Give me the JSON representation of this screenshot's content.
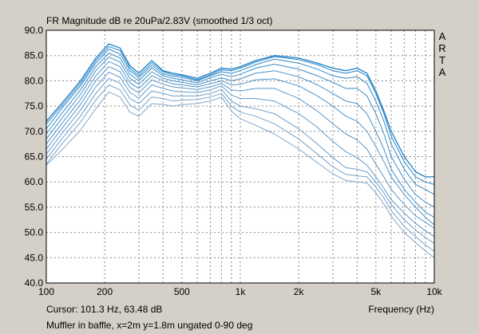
{
  "chart_data": {
    "type": "line",
    "title": "FR Magnitude dB re 20uPa/2.83V (smoothed 1/3 oct)",
    "xlabel": "Frequency (Hz)",
    "ylabel": "",
    "x_scale": "log",
    "xlim": [
      100,
      10000
    ],
    "ylim": [
      40,
      90
    ],
    "grid": true,
    "y_ticks": [
      "90.0",
      "85.0",
      "80.0",
      "75.0",
      "70.0",
      "65.0",
      "60.0",
      "55.0",
      "50.0",
      "45.0",
      "40.0"
    ],
    "x_ticks": [
      {
        "value": 100,
        "label": "100"
      },
      {
        "value": 200,
        "label": "200"
      },
      {
        "value": 500,
        "label": "500"
      },
      {
        "value": 1000,
        "label": "1k"
      },
      {
        "value": 2000,
        "label": "2k"
      },
      {
        "value": 5000,
        "label": "5k"
      },
      {
        "value": 10000,
        "label": "10k"
      }
    ],
    "x": [
      100,
      120,
      150,
      180,
      210,
      240,
      270,
      300,
      350,
      400,
      450,
      500,
      600,
      700,
      800,
      900,
      1000,
      1200,
      1500,
      2000,
      2500,
      3000,
      3500,
      4000,
      4500,
      5000,
      5500,
      6000,
      7000,
      8000,
      9000,
      10000
    ],
    "series": [
      {
        "values": [
          72,
          75.5,
          80,
          84.5,
          87.3,
          86.5,
          83,
          81.5,
          84,
          82,
          81.5,
          81.2,
          80.5,
          81.5,
          82.5,
          82.3,
          82.8,
          84,
          85,
          84.5,
          83.5,
          82.5,
          82,
          82.5,
          81.5,
          78,
          74,
          70,
          65,
          62,
          61,
          61
        ]
      },
      {
        "values": [
          71.5,
          75,
          79.5,
          84,
          86.8,
          86,
          82.5,
          81,
          83.5,
          81.8,
          81.2,
          81,
          80.2,
          81.2,
          82.2,
          82,
          82.5,
          83.7,
          84.8,
          84.2,
          83.2,
          82,
          81.5,
          82,
          81,
          77.5,
          73.5,
          69,
          64,
          61,
          60,
          59.5
        ]
      },
      {
        "values": [
          70.5,
          74.5,
          79,
          83.5,
          86.3,
          85.3,
          82,
          80.6,
          83,
          81.4,
          80.9,
          80.7,
          80,
          81,
          81.8,
          81.5,
          82,
          83.2,
          84.3,
          83.5,
          82.3,
          81,
          80.5,
          80.8,
          79.5,
          76,
          72,
          67.5,
          62.5,
          59.5,
          58.5,
          57.5
        ]
      },
      {
        "values": [
          69.5,
          73.5,
          78.2,
          82.8,
          85.5,
          84.5,
          81.3,
          80,
          82.5,
          81,
          80.5,
          80.2,
          79.6,
          80.6,
          81.3,
          80.8,
          81.3,
          82.5,
          83.3,
          82.3,
          81,
          79.7,
          78.5,
          78.5,
          77,
          73.5,
          69.5,
          65,
          60.5,
          57.5,
          56,
          55
        ]
      },
      {
        "values": [
          68.5,
          72.5,
          77.3,
          82,
          84.7,
          83.7,
          80.5,
          79.3,
          81.8,
          80.5,
          80,
          79.7,
          79.2,
          80,
          80.6,
          80,
          80.4,
          81.5,
          82,
          80.8,
          79.2,
          77.5,
          76,
          75.5,
          73.5,
          70,
          66.5,
          62.5,
          58.5,
          56,
          54,
          53
        ]
      },
      {
        "values": [
          67.5,
          71.5,
          76.3,
          81,
          83.8,
          82.8,
          79.6,
          78.5,
          81,
          80,
          79.4,
          79.2,
          78.8,
          79.4,
          80,
          79.2,
          79.3,
          80.2,
          80.4,
          79,
          77,
          75,
          73,
          72,
          70,
          67,
          64,
          61,
          57.5,
          55,
          53,
          51.5
        ]
      },
      {
        "values": [
          66.5,
          70.5,
          75.3,
          80,
          82.8,
          81.8,
          78.7,
          77.6,
          80.2,
          79.3,
          78.8,
          78.6,
          78.3,
          78.8,
          79.5,
          78.2,
          78,
          78.5,
          78.5,
          76.5,
          74,
          71.5,
          69.5,
          68.3,
          66.5,
          63.5,
          61,
          58.5,
          55.5,
          53.3,
          52,
          50.8
        ]
      },
      {
        "values": [
          65.5,
          69.5,
          74.2,
          78.8,
          81.7,
          80.7,
          77.7,
          76.6,
          79.2,
          78.5,
          78,
          77.8,
          77.7,
          78.2,
          79,
          77.2,
          76.5,
          76.5,
          76,
          73.5,
          70.8,
          68,
          66,
          64.8,
          63.3,
          61,
          58.7,
          56.5,
          53.8,
          51.8,
          50.3,
          49.2
        ]
      },
      {
        "values": [
          64.5,
          68.5,
          73,
          77.5,
          80.5,
          79.5,
          76.5,
          75.5,
          78,
          77.5,
          77,
          77,
          77,
          77.5,
          78.3,
          76,
          75,
          74.5,
          73.5,
          70.5,
          67.5,
          64.8,
          62.8,
          62.5,
          62,
          60,
          57.8,
          55.5,
          52.5,
          50.5,
          49,
          47.8
        ]
      },
      {
        "values": [
          63.5,
          67.5,
          71.8,
          76.2,
          79.2,
          78.2,
          75.2,
          74.2,
          76.8,
          76.5,
          76,
          76.2,
          76.3,
          76.8,
          77.5,
          75,
          73.8,
          73,
          71.5,
          68.5,
          65.5,
          63,
          61.5,
          61.2,
          61,
          59,
          56.8,
          54.3,
          51.2,
          49.2,
          47.5,
          46.3
        ]
      },
      {
        "values": [
          63.3,
          66.3,
          70.2,
          74.5,
          77.8,
          76.8,
          73.8,
          73,
          75.5,
          75.3,
          75,
          75.3,
          75.5,
          76,
          76.8,
          74,
          72.5,
          71.2,
          69.5,
          66.5,
          63.8,
          61.6,
          60.3,
          60,
          59.8,
          57.8,
          55.6,
          53.2,
          50,
          48,
          46.3,
          45
        ]
      }
    ]
  },
  "text": {
    "cursor": "Cursor: 101.3 Hz, 63.48 dB",
    "note": "Muffler in baffle, x=2m y=1.8m ungated 0-90 deg",
    "brand_letters": [
      "A",
      "R",
      "T",
      "A"
    ]
  },
  "colors": {
    "background": "#d4d0c8",
    "plot_background": "#ffffff",
    "grid": "#8a8a8a",
    "frame": "#000000",
    "series_gradient": [
      "#1a7fc6",
      "#7fa6cc"
    ]
  }
}
